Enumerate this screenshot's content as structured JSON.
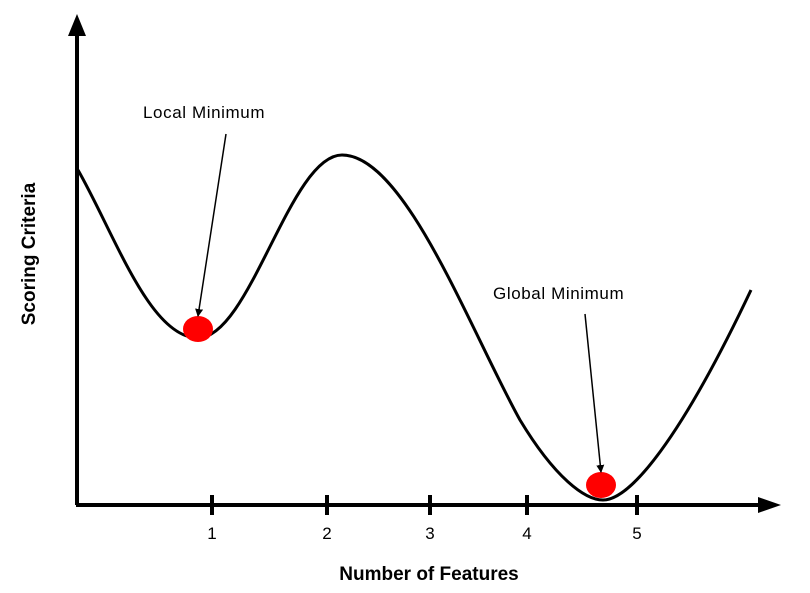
{
  "diagram": {
    "x_axis_label": "Number of Features",
    "y_axis_label": "Scoring Criteria",
    "ticks": [
      "1",
      "2",
      "3",
      "4",
      "5"
    ],
    "annotations": {
      "local_minimum": "Local Minimum",
      "global_minimum": "Global Minimum"
    },
    "colors": {
      "curve": "#000000",
      "minimum_marker": "#ff0000"
    }
  }
}
